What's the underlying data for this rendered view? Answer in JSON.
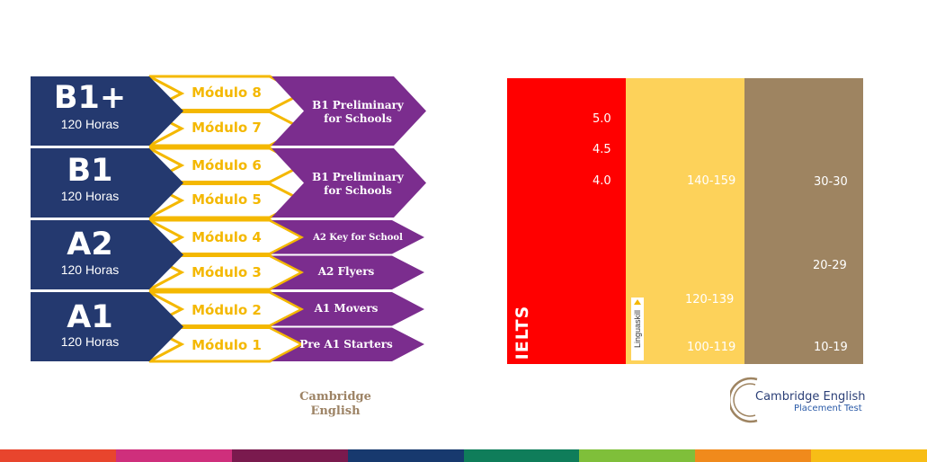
{
  "levels": [
    {
      "code": "B1+",
      "hours": "120 Horas",
      "modules": [
        "Módulo 8",
        "Módulo 7"
      ],
      "exams": [
        {
          "label_lines": [
            "B1 Preliminary",
            "for Schools"
          ]
        }
      ]
    },
    {
      "code": "B1",
      "hours": "120 Horas",
      "modules": [
        "Módulo 6",
        "Módulo 5"
      ],
      "exams": [
        {
          "label_lines": [
            "B1 Preliminary",
            "for Schools"
          ]
        }
      ]
    },
    {
      "code": "A2",
      "hours": "120 Horas",
      "modules": [
        "Módulo 4",
        "Módulo 3"
      ],
      "exams": [
        {
          "label_lines": [
            "A2 Key for School"
          ]
        },
        {
          "label_lines": [
            "A2 Flyers"
          ]
        }
      ]
    },
    {
      "code": "A1",
      "hours": "120 Horas",
      "modules": [
        "Módulo 2",
        "Módulo 1"
      ],
      "exams": [
        {
          "label_lines": [
            "A1 Movers"
          ]
        },
        {
          "label_lines": [
            "Pre A1 Starters"
          ]
        }
      ]
    }
  ],
  "cambridge_logo_left": [
    "Cambridge",
    "English"
  ],
  "score_columns": {
    "ielts": {
      "logo": "IELTS",
      "scores": [
        "5.0",
        "4.5",
        "4.0"
      ]
    },
    "linguaskill": {
      "logo": "Linguaskill",
      "scores": [
        "140-159",
        "120-139",
        "100-119"
      ]
    },
    "cambridge_english": {
      "scores": [
        "30-30",
        "20-29",
        "10-19"
      ]
    }
  },
  "cambridge_placement_logo": {
    "name": "Cambridge English",
    "subtitle": "Placement Test"
  },
  "colors": {
    "level_blue": "#24396f",
    "module_yellow": "#f4b800",
    "exam_purple": "#7b2d8e",
    "ielts_red": "#ff0000",
    "linguaskill_yellow": "#fdd25a",
    "cambridge_brown": "#9e8461"
  },
  "bottom_stripe_colors": [
    "#e8452d",
    "#cf2f7c",
    "#7a1a4e",
    "#17396e",
    "#0f7d5a",
    "#7fbf3a",
    "#f08a1c",
    "#f7bd16"
  ]
}
